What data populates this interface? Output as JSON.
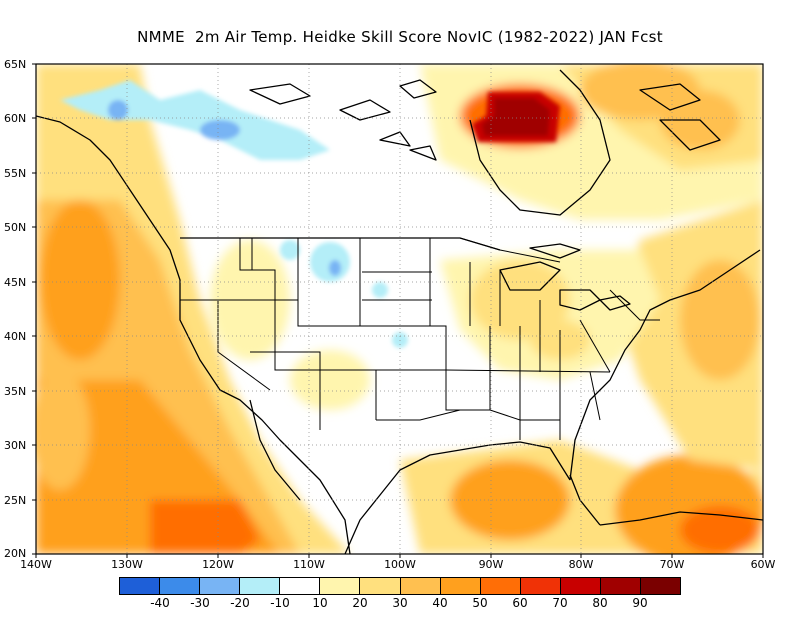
{
  "title": "NMME  2m Air Temp. Heidke Skill Score NovIC (1982-2022) JAN Fcst",
  "lat_labels": [
    "65N",
    "60N",
    "55N",
    "50N",
    "45N",
    "40N",
    "35N",
    "30N",
    "25N",
    "20N"
  ],
  "lon_labels": [
    "140W",
    "130W",
    "120W",
    "110W",
    "100W",
    "90W",
    "80W",
    "70W",
    "60W"
  ],
  "colorbar": {
    "colors": [
      "#1e5fd8",
      "#3c8bea",
      "#78b4f4",
      "#b4eef8",
      "#ffffff",
      "#fff5ae",
      "#ffe07e",
      "#ffc050",
      "#ffa01e",
      "#ff6e06",
      "#f03206",
      "#c80000",
      "#a00000",
      "#7a0000"
    ],
    "labels": [
      "-40",
      "-30",
      "-20",
      "-10",
      "10",
      "20",
      "30",
      "40",
      "50",
      "60",
      "70",
      "80",
      "90"
    ]
  }
}
